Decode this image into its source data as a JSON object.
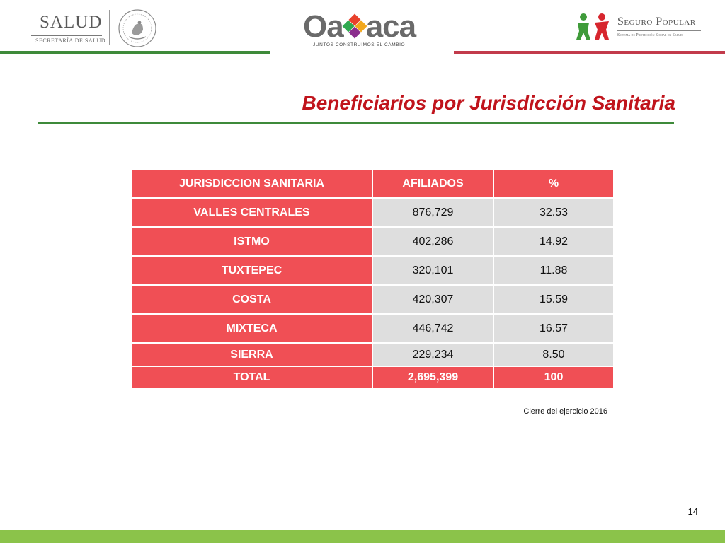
{
  "header": {
    "salud": {
      "word": "SALUD",
      "subtitle": "SECRETARÍA DE SALUD"
    },
    "oaxaca": {
      "word_left": "Oa",
      "word_right": "aca",
      "tagline": "JUNTOS CONSTRUIMOS EL CAMBIO",
      "x_colors": [
        "#e8412c",
        "#f2a81d",
        "#8b2d8e",
        "#2fa84f"
      ]
    },
    "seguro_popular": {
      "word": "Seguro Popular",
      "subtitle": "Sistema de Protección Social en Salud"
    }
  },
  "title": "Beneficiarios por Jurisdicción Sanitaria",
  "table": {
    "headers": [
      "JURISDICCION SANITARIA",
      "AFILIADOS",
      "%"
    ],
    "rows": [
      {
        "jurisdiccion": "VALLES CENTRALES",
        "afiliados": "876,729",
        "pct": "32.53"
      },
      {
        "jurisdiccion": "ISTMO",
        "afiliados": "402,286",
        "pct": "14.92"
      },
      {
        "jurisdiccion": "TUXTEPEC",
        "afiliados": "320,101",
        "pct": "11.88"
      },
      {
        "jurisdiccion": "COSTA",
        "afiliados": "420,307",
        "pct": "15.59"
      },
      {
        "jurisdiccion": "MIXTECA",
        "afiliados": "446,742",
        "pct": "16.57"
      },
      {
        "jurisdiccion": "SIERRA",
        "afiliados": "229,234",
        "pct": "8.50"
      }
    ],
    "total": {
      "label": "TOTAL",
      "afiliados": "2,695,399",
      "pct": "100"
    }
  },
  "note": "Cierre del ejercicio 2016",
  "page_number": "14",
  "colors": {
    "accent_red": "#c0141c",
    "table_red": "#f04f55",
    "cell_gray": "#dedede",
    "green": "#3e8a3a",
    "bottom_green": "#8bc34a"
  }
}
